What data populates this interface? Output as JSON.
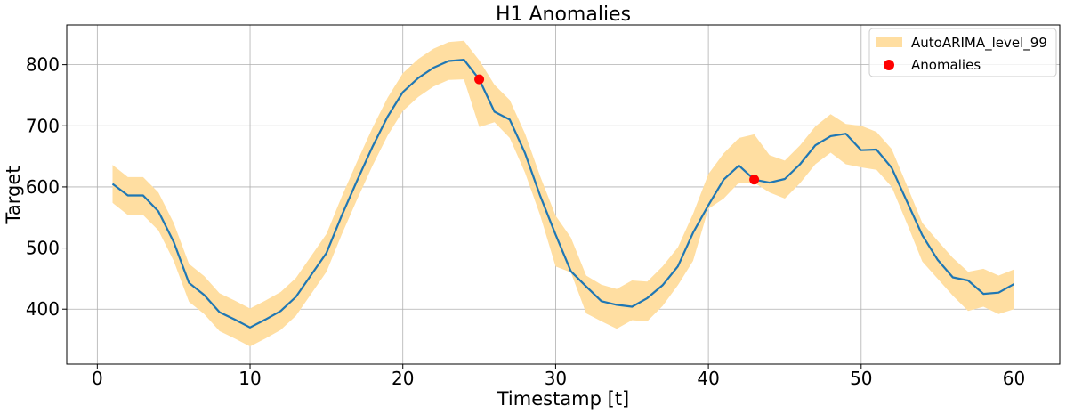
{
  "chart_data": {
    "type": "line",
    "title": "H1 Anomalies",
    "xlabel": "Timestamp [t]",
    "ylabel": "Target",
    "xlim": [
      -2,
      63
    ],
    "ylim": [
      310,
      865
    ],
    "xticks": [
      0,
      10,
      20,
      30,
      40,
      50,
      60
    ],
    "yticks": [
      400,
      500,
      600,
      700,
      800
    ],
    "grid": true,
    "legend_position": "top-right",
    "colors": {
      "line": "#1f77b4",
      "band": "#ffdea1",
      "anomaly": "#ff0000",
      "grid": "#b0b0b0"
    },
    "series": [
      {
        "name": "",
        "x": [
          1,
          2,
          3,
          4,
          5,
          6,
          7,
          8,
          9,
          10,
          11,
          12,
          13,
          14,
          15,
          16,
          17,
          18,
          19,
          20,
          21,
          22,
          23,
          24,
          25,
          26,
          27,
          28,
          29,
          30,
          31,
          32,
          33,
          34,
          35,
          36,
          37,
          38,
          39,
          40,
          41,
          42,
          43,
          44,
          45,
          46,
          47,
          48,
          49,
          50,
          51,
          52,
          53,
          54,
          55,
          56,
          57,
          58,
          59,
          60
        ],
        "y": [
          605,
          586,
          586,
          560,
          510,
          443,
          423,
          395,
          383,
          370,
          383,
          397,
          420,
          456,
          492,
          553,
          610,
          665,
          715,
          755,
          778,
          795,
          806,
          808,
          776,
          723,
          710,
          655,
          585,
          522,
          462,
          437,
          413,
          407,
          404,
          418,
          439,
          470,
          525,
          570,
          612,
          635,
          612,
          607,
          613,
          637,
          668,
          683,
          687,
          660,
          661,
          631,
          576,
          521,
          481,
          452,
          447,
          425,
          427,
          441
        ]
      }
    ],
    "band": {
      "name": "AutoARIMA_level_99",
      "x": [
        1,
        2,
        3,
        4,
        5,
        6,
        7,
        8,
        9,
        10,
        11,
        12,
        13,
        14,
        15,
        16,
        17,
        18,
        19,
        20,
        21,
        22,
        23,
        24,
        25,
        26,
        27,
        28,
        29,
        30,
        31,
        32,
        33,
        34,
        35,
        36,
        37,
        38,
        39,
        40,
        41,
        42,
        43,
        44,
        45,
        46,
        47,
        48,
        49,
        50,
        51,
        52,
        53,
        54,
        55,
        56,
        57,
        58,
        59,
        60
      ],
      "upper": [
        636,
        616,
        616,
        591,
        541,
        474,
        454,
        426,
        414,
        401,
        414,
        428,
        451,
        487,
        523,
        584,
        641,
        696,
        746,
        786,
        809,
        826,
        837,
        839,
        807,
        767,
        742,
        687,
        617,
        553,
        517,
        455,
        440,
        433,
        447,
        445,
        470,
        501,
        556,
        621,
        655,
        680,
        686,
        652,
        643,
        668,
        699,
        719,
        703,
        700,
        690,
        662,
        602,
        541,
        512,
        484,
        461,
        466,
        455,
        465
      ],
      "lower": [
        574,
        554,
        554,
        529,
        479,
        412,
        392,
        364,
        352,
        339,
        352,
        366,
        389,
        425,
        461,
        522,
        579,
        634,
        684,
        724,
        747,
        764,
        775,
        776,
        698,
        706,
        680,
        623,
        553,
        470,
        460,
        393,
        380,
        368,
        382,
        380,
        405,
        439,
        479,
        564,
        581,
        607,
        607,
        591,
        581,
        606,
        637,
        656,
        637,
        632,
        628,
        600,
        540,
        478,
        450,
        422,
        397,
        404,
        392,
        400
      ]
    },
    "anomalies": {
      "name": "Anomalies",
      "x": [
        25,
        43
      ],
      "y": [
        776,
        612
      ]
    }
  }
}
